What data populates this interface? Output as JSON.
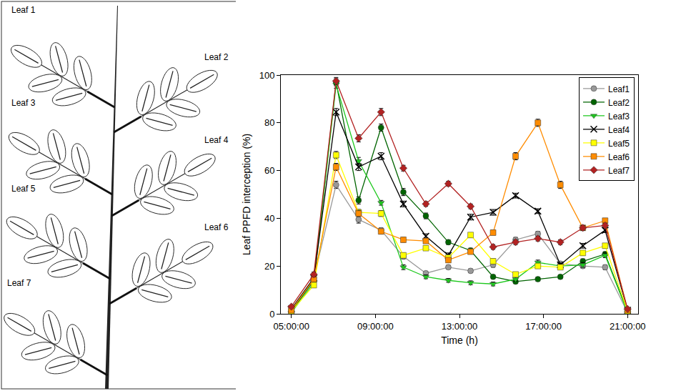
{
  "diagram": {
    "leaves": [
      "Leaf 1",
      "Leaf 2",
      "Leaf 3",
      "Leaf 4",
      "Leaf 5",
      "Leaf 6",
      "Leaf 7"
    ]
  },
  "chart_data": {
    "type": "line",
    "x_label": "Time (h)",
    "y_label": "Leaf PPFD interception (%)",
    "x": [
      5,
      6.07,
      7.13,
      8.2,
      9.27,
      10.33,
      11.4,
      12.47,
      13.53,
      14.6,
      15.67,
      16.73,
      17.8,
      18.87,
      19.93,
      21
    ],
    "series": [
      {
        "name": "Leaf1",
        "color": "#999999",
        "marker": "circle",
        "values": [
          0.5,
          15,
          54,
          39.5,
          35,
          24,
          17,
          19.5,
          18,
          20.5,
          31,
          33.5,
          21,
          20,
          19.5,
          0.5
        ],
        "errors": [
          0.5,
          1,
          1.5,
          1.5,
          1,
          1,
          0.8,
          0.8,
          0.8,
          1,
          1,
          1,
          0.8,
          0.8,
          1,
          0.3
        ]
      },
      {
        "name": "Leaf2",
        "color": "#006400",
        "marker": "circle",
        "values": [
          1,
          14,
          97,
          47.5,
          78,
          51,
          41,
          30,
          26.5,
          15.5,
          13.5,
          14.5,
          15.5,
          22,
          25,
          1
        ],
        "errors": [
          0.5,
          1,
          1.5,
          1.5,
          1.5,
          1.5,
          1.2,
          1,
          1,
          0.8,
          0.8,
          0.8,
          0.8,
          1,
          1,
          0.3
        ]
      },
      {
        "name": "Leaf3",
        "color": "#1ec81e",
        "marker": "triangle-down",
        "values": [
          0.5,
          13,
          96,
          64,
          46.5,
          19.5,
          15.5,
          14,
          13,
          12.5,
          14.5,
          21.5,
          20,
          20.5,
          24.5,
          0.5
        ],
        "errors": [
          0.3,
          1,
          1.5,
          1.5,
          1,
          1,
          0.8,
          0.8,
          0.8,
          0.8,
          0.8,
          1,
          1,
          1,
          1,
          0.3
        ]
      },
      {
        "name": "Leaf4",
        "color": "#000000",
        "marker": "x",
        "values": [
          2,
          15,
          84.5,
          61.5,
          66,
          46,
          32.5,
          24.5,
          40.5,
          42.5,
          49.5,
          43,
          20.5,
          28.5,
          35,
          1.5
        ],
        "errors": [
          0.5,
          1,
          1.5,
          1.5,
          1.5,
          1.2,
          1,
          1,
          1.2,
          1.2,
          1,
          1,
          0.8,
          1,
          1,
          0.3
        ]
      },
      {
        "name": "Leaf5",
        "color": "#ffff00",
        "marker": "square",
        "values": [
          1,
          12,
          66.5,
          42.5,
          42,
          24.5,
          27.5,
          23.5,
          33,
          22,
          16.5,
          20,
          19.5,
          25.5,
          28.5,
          1
        ],
        "errors": [
          0.5,
          1,
          1.5,
          1.2,
          1.2,
          1,
          1,
          1,
          1,
          1,
          0.8,
          0.8,
          0.8,
          1,
          1,
          0.3
        ]
      },
      {
        "name": "Leaf6",
        "color": "#ff8c00",
        "marker": "square",
        "values": [
          1.5,
          14.5,
          61.5,
          42,
          34.5,
          31,
          30.5,
          22.5,
          26,
          34,
          66,
          80,
          54,
          36,
          39,
          1.5
        ],
        "errors": [
          0.5,
          1,
          1.5,
          1.2,
          1,
          1,
          1,
          1,
          1,
          1,
          1.5,
          1.5,
          1.5,
          1,
          1,
          0.3
        ]
      },
      {
        "name": "Leaf7",
        "color": "#b22222",
        "marker": "diamond",
        "values": [
          3,
          16.5,
          97.5,
          73.5,
          84.5,
          61,
          46,
          54.5,
          45,
          28,
          30,
          31.5,
          30,
          36,
          37,
          2
        ],
        "errors": [
          0.5,
          1,
          1.5,
          1.5,
          1.5,
          1.2,
          1,
          1,
          1,
          1,
          1,
          1,
          1,
          1,
          1,
          0.3
        ]
      }
    ],
    "xlim": [
      4.5,
      21.5
    ],
    "xticks": [
      {
        "value": 5,
        "label": "05:00:00"
      },
      {
        "value": 9,
        "label": "09:00:00"
      },
      {
        "value": 13,
        "label": "13:00:00"
      },
      {
        "value": 17,
        "label": "17:00:00"
      },
      {
        "value": 21,
        "label": "21:00:00"
      }
    ],
    "ylim": [
      0,
      100
    ],
    "yticks": [
      0,
      20,
      40,
      60,
      80,
      100
    ],
    "grid": false,
    "legend": "top right"
  }
}
